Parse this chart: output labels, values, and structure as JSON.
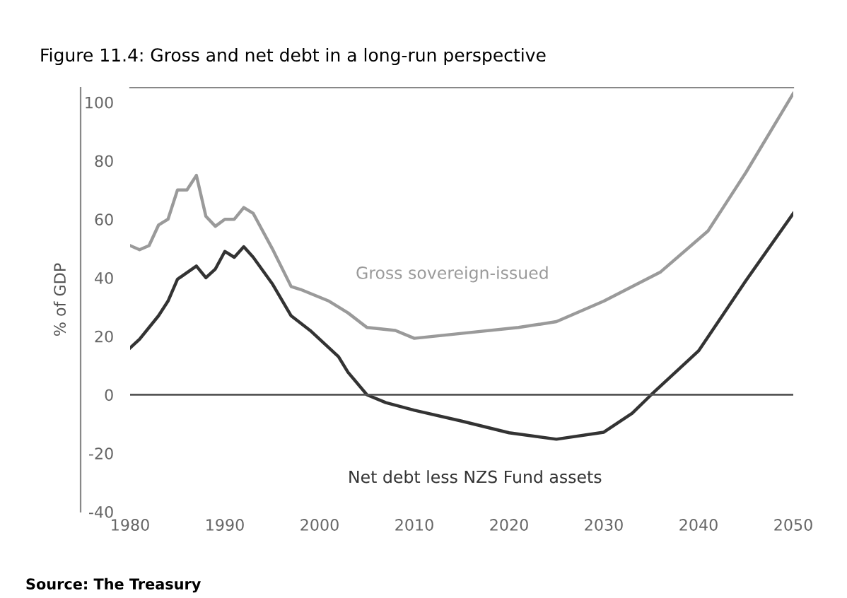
{
  "chart_data": {
    "type": "line",
    "title": "Figure 11.4: Gross and net debt in a long-run perspective",
    "ylabel": "% of GDP",
    "annotations": [
      "Source: The Treasury"
    ],
    "series": [
      {
        "name": "Gross sovereign-issued",
        "color": "#9a9a9a",
        "x": [
          1980,
          1981,
          1982,
          1983,
          1984,
          1985,
          1986,
          1987,
          1988,
          1989,
          1990,
          1991,
          1992,
          1993,
          1995,
          1997,
          1998,
          2001,
          2003,
          2005,
          2008,
          2010,
          2015,
          2021,
          2025,
          2030,
          2036,
          2041,
          2045,
          2050
        ],
        "values": [
          51,
          49.6,
          51,
          58,
          60,
          70,
          70,
          75,
          61,
          57.6,
          60,
          60,
          64,
          62,
          50,
          37,
          36,
          32,
          28,
          23,
          22,
          19.3,
          21,
          23,
          25,
          32,
          42,
          56,
          76,
          103
        ]
      },
      {
        "name": "Net debt less NZS Fund assets",
        "color": "#333333",
        "x": [
          1980,
          1981,
          1983,
          1984,
          1985,
          1987,
          1988,
          1989,
          1990,
          1991,
          1992,
          1993,
          1995,
          1997,
          1999,
          2002,
          2003,
          2005,
          2007,
          2010,
          2015,
          2020,
          2025,
          2030,
          2033,
          2035,
          2040,
          2045,
          2050
        ],
        "values": [
          16,
          19,
          27,
          32,
          39.5,
          44,
          40,
          43,
          49,
          47,
          50.6,
          47,
          38,
          27,
          22,
          13,
          7.7,
          0,
          -2.7,
          -5.3,
          -9,
          -13,
          -15.2,
          -12.8,
          -6.3,
          0,
          15,
          39,
          62
        ]
      }
    ],
    "xlim": [
      1980,
      2050
    ],
    "xticks": [
      1980,
      1990,
      2000,
      2010,
      2020,
      2030,
      2040,
      2050
    ],
    "ylim": [
      -40,
      105
    ],
    "yticks": [
      -40,
      -20,
      0,
      20,
      40,
      60,
      80,
      100
    ],
    "ref_lines": [
      {
        "axis": "y",
        "value": 0,
        "color": "#555555"
      }
    ],
    "grid": false,
    "legend": false
  }
}
